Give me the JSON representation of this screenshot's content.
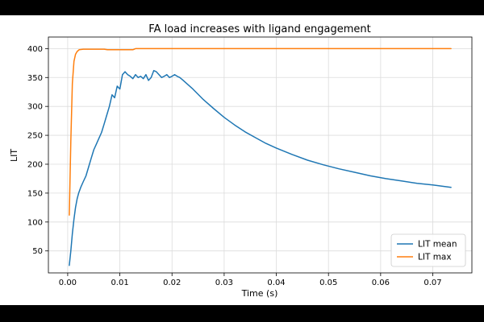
{
  "chart_data": {
    "type": "line",
    "title": "FA load increases with ligand engagement",
    "xlabel": "Time (s)",
    "ylabel": "LIT",
    "xlim": [
      -0.0037,
      0.0775
    ],
    "ylim": [
      12,
      420
    ],
    "xticks": [
      0.0,
      0.01,
      0.02,
      0.03,
      0.04,
      0.05,
      0.06,
      0.07
    ],
    "xtick_labels": [
      "0.00",
      "0.01",
      "0.02",
      "0.03",
      "0.04",
      "0.05",
      "0.06",
      "0.07"
    ],
    "yticks": [
      50,
      100,
      150,
      200,
      250,
      300,
      350,
      400
    ],
    "ytick_labels": [
      "50",
      "100",
      "150",
      "200",
      "250",
      "300",
      "350",
      "400"
    ],
    "grid": true,
    "legend_position": "lower-right",
    "series": [
      {
        "name": "LIT mean",
        "color": "#1f77b4",
        "x": [
          0.0003,
          0.0006,
          0.0009,
          0.0012,
          0.0015,
          0.0018,
          0.0021,
          0.0025,
          0.003,
          0.0035,
          0.004,
          0.0045,
          0.005,
          0.0055,
          0.006,
          0.0065,
          0.007,
          0.0075,
          0.008,
          0.0085,
          0.009,
          0.0095,
          0.01,
          0.0105,
          0.011,
          0.0115,
          0.012,
          0.0125,
          0.013,
          0.0135,
          0.014,
          0.0145,
          0.015,
          0.0155,
          0.016,
          0.0165,
          0.017,
          0.0175,
          0.018,
          0.0185,
          0.019,
          0.0195,
          0.02,
          0.0205,
          0.021,
          0.0215,
          0.022,
          0.024,
          0.026,
          0.028,
          0.03,
          0.032,
          0.034,
          0.036,
          0.038,
          0.04,
          0.043,
          0.046,
          0.049,
          0.052,
          0.055,
          0.058,
          0.061,
          0.064,
          0.067,
          0.07,
          0.0735
        ],
        "values": [
          25,
          50,
          80,
          105,
          125,
          140,
          150,
          160,
          170,
          180,
          195,
          210,
          225,
          235,
          245,
          255,
          270,
          285,
          300,
          320,
          315,
          335,
          330,
          355,
          360,
          355,
          352,
          348,
          355,
          350,
          352,
          348,
          355,
          345,
          350,
          362,
          360,
          355,
          350,
          352,
          355,
          350,
          352,
          355,
          352,
          350,
          346,
          330,
          312,
          296,
          281,
          268,
          256,
          246,
          236,
          228,
          217,
          207,
          199,
          192,
          186,
          180,
          175,
          171,
          167,
          164,
          160
        ]
      },
      {
        "name": "LIT max",
        "color": "#ff7f0e",
        "x": [
          0.0003,
          0.0006,
          0.0009,
          0.0012,
          0.0015,
          0.0018,
          0.0022,
          0.003,
          0.005,
          0.007,
          0.0076,
          0.009,
          0.011,
          0.0125,
          0.013,
          0.02,
          0.03,
          0.04,
          0.05,
          0.06,
          0.07,
          0.0735
        ],
        "values": [
          112,
          240,
          340,
          378,
          390,
          395,
          398,
          399,
          399,
          399,
          398,
          398,
          398,
          398,
          400,
          400,
          400,
          400,
          400,
          400,
          400,
          400
        ]
      }
    ]
  }
}
